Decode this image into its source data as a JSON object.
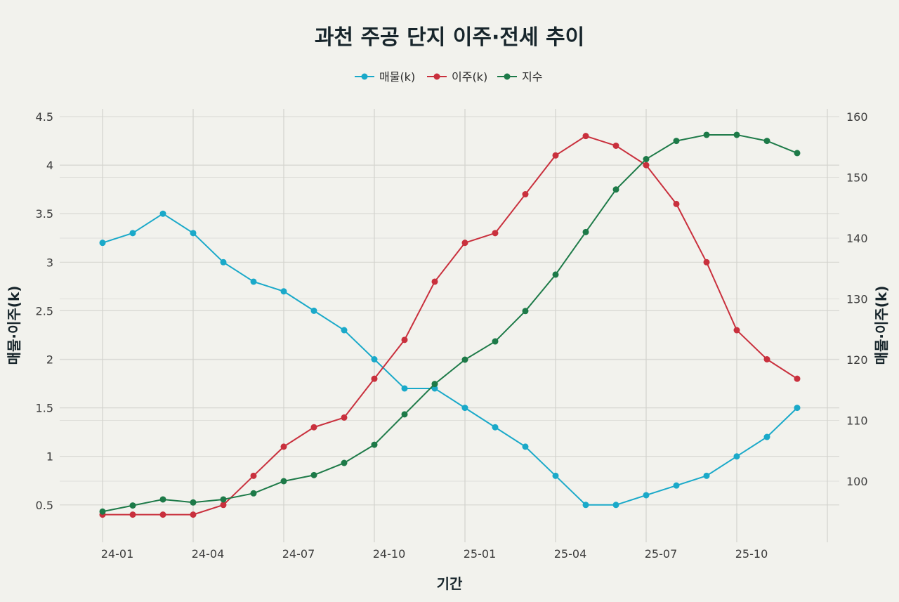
{
  "chart_data": {
    "type": "line",
    "title": "과천 주공 단지 이주·전세 추이",
    "xlabel": "기간",
    "ylabel_left": "매물·이주(k)",
    "ylabel_right": "매물·이주(k)",
    "legend_position": "top-center",
    "grid": true,
    "x": [
      "24-01",
      "24-02",
      "24-03",
      "24-04",
      "24-05",
      "24-06",
      "24-07",
      "24-08",
      "24-09",
      "24-10",
      "24-11",
      "24-12",
      "25-01",
      "25-02",
      "25-03",
      "25-04",
      "25-05",
      "25-06",
      "25-07",
      "25-08",
      "25-09",
      "25-10",
      "25-11",
      "25-12"
    ],
    "x_tick_labels": [
      "24-01",
      "24-04",
      "24-07",
      "24-10",
      "25-01",
      "25-04",
      "25-07",
      "25-10"
    ],
    "y_left_ticks": [
      "0.5",
      "1",
      "1.5",
      "2",
      "2.5",
      "3",
      "3.5",
      "4",
      "4.5"
    ],
    "y_left_range": [
      0.1,
      4.5
    ],
    "y_right_ticks": [
      "100",
      "110",
      "120",
      "130",
      "140",
      "150",
      "160"
    ],
    "y_right_range": [
      91,
      160
    ],
    "series": [
      {
        "name": "매물(k)",
        "axis": "left",
        "color": "#1aa9c9",
        "values": [
          3.2,
          3.3,
          3.5,
          3.3,
          3.0,
          2.8,
          2.7,
          2.5,
          2.3,
          2.0,
          1.7,
          1.7,
          1.5,
          1.3,
          1.1,
          0.8,
          0.5,
          0.5,
          0.6,
          0.7,
          0.8,
          1.0,
          1.2,
          1.5
        ]
      },
      {
        "name": "이주(k)",
        "axis": "left",
        "color": "#c9303d",
        "values": [
          0.4,
          0.4,
          0.4,
          0.4,
          0.5,
          0.8,
          1.1,
          1.3,
          1.4,
          1.8,
          2.2,
          2.8,
          3.2,
          3.3,
          3.7,
          4.1,
          4.3,
          4.2,
          4.0,
          3.6,
          3.0,
          2.3,
          2.0,
          1.8
        ]
      },
      {
        "name": "지수",
        "axis": "right",
        "color": "#1d7a48",
        "values": [
          95,
          96,
          97,
          96.5,
          97,
          98,
          100,
          101,
          103,
          106,
          111,
          116,
          120,
          123,
          128,
          134,
          141,
          148,
          153,
          156,
          157,
          157,
          156,
          154
        ]
      }
    ]
  }
}
